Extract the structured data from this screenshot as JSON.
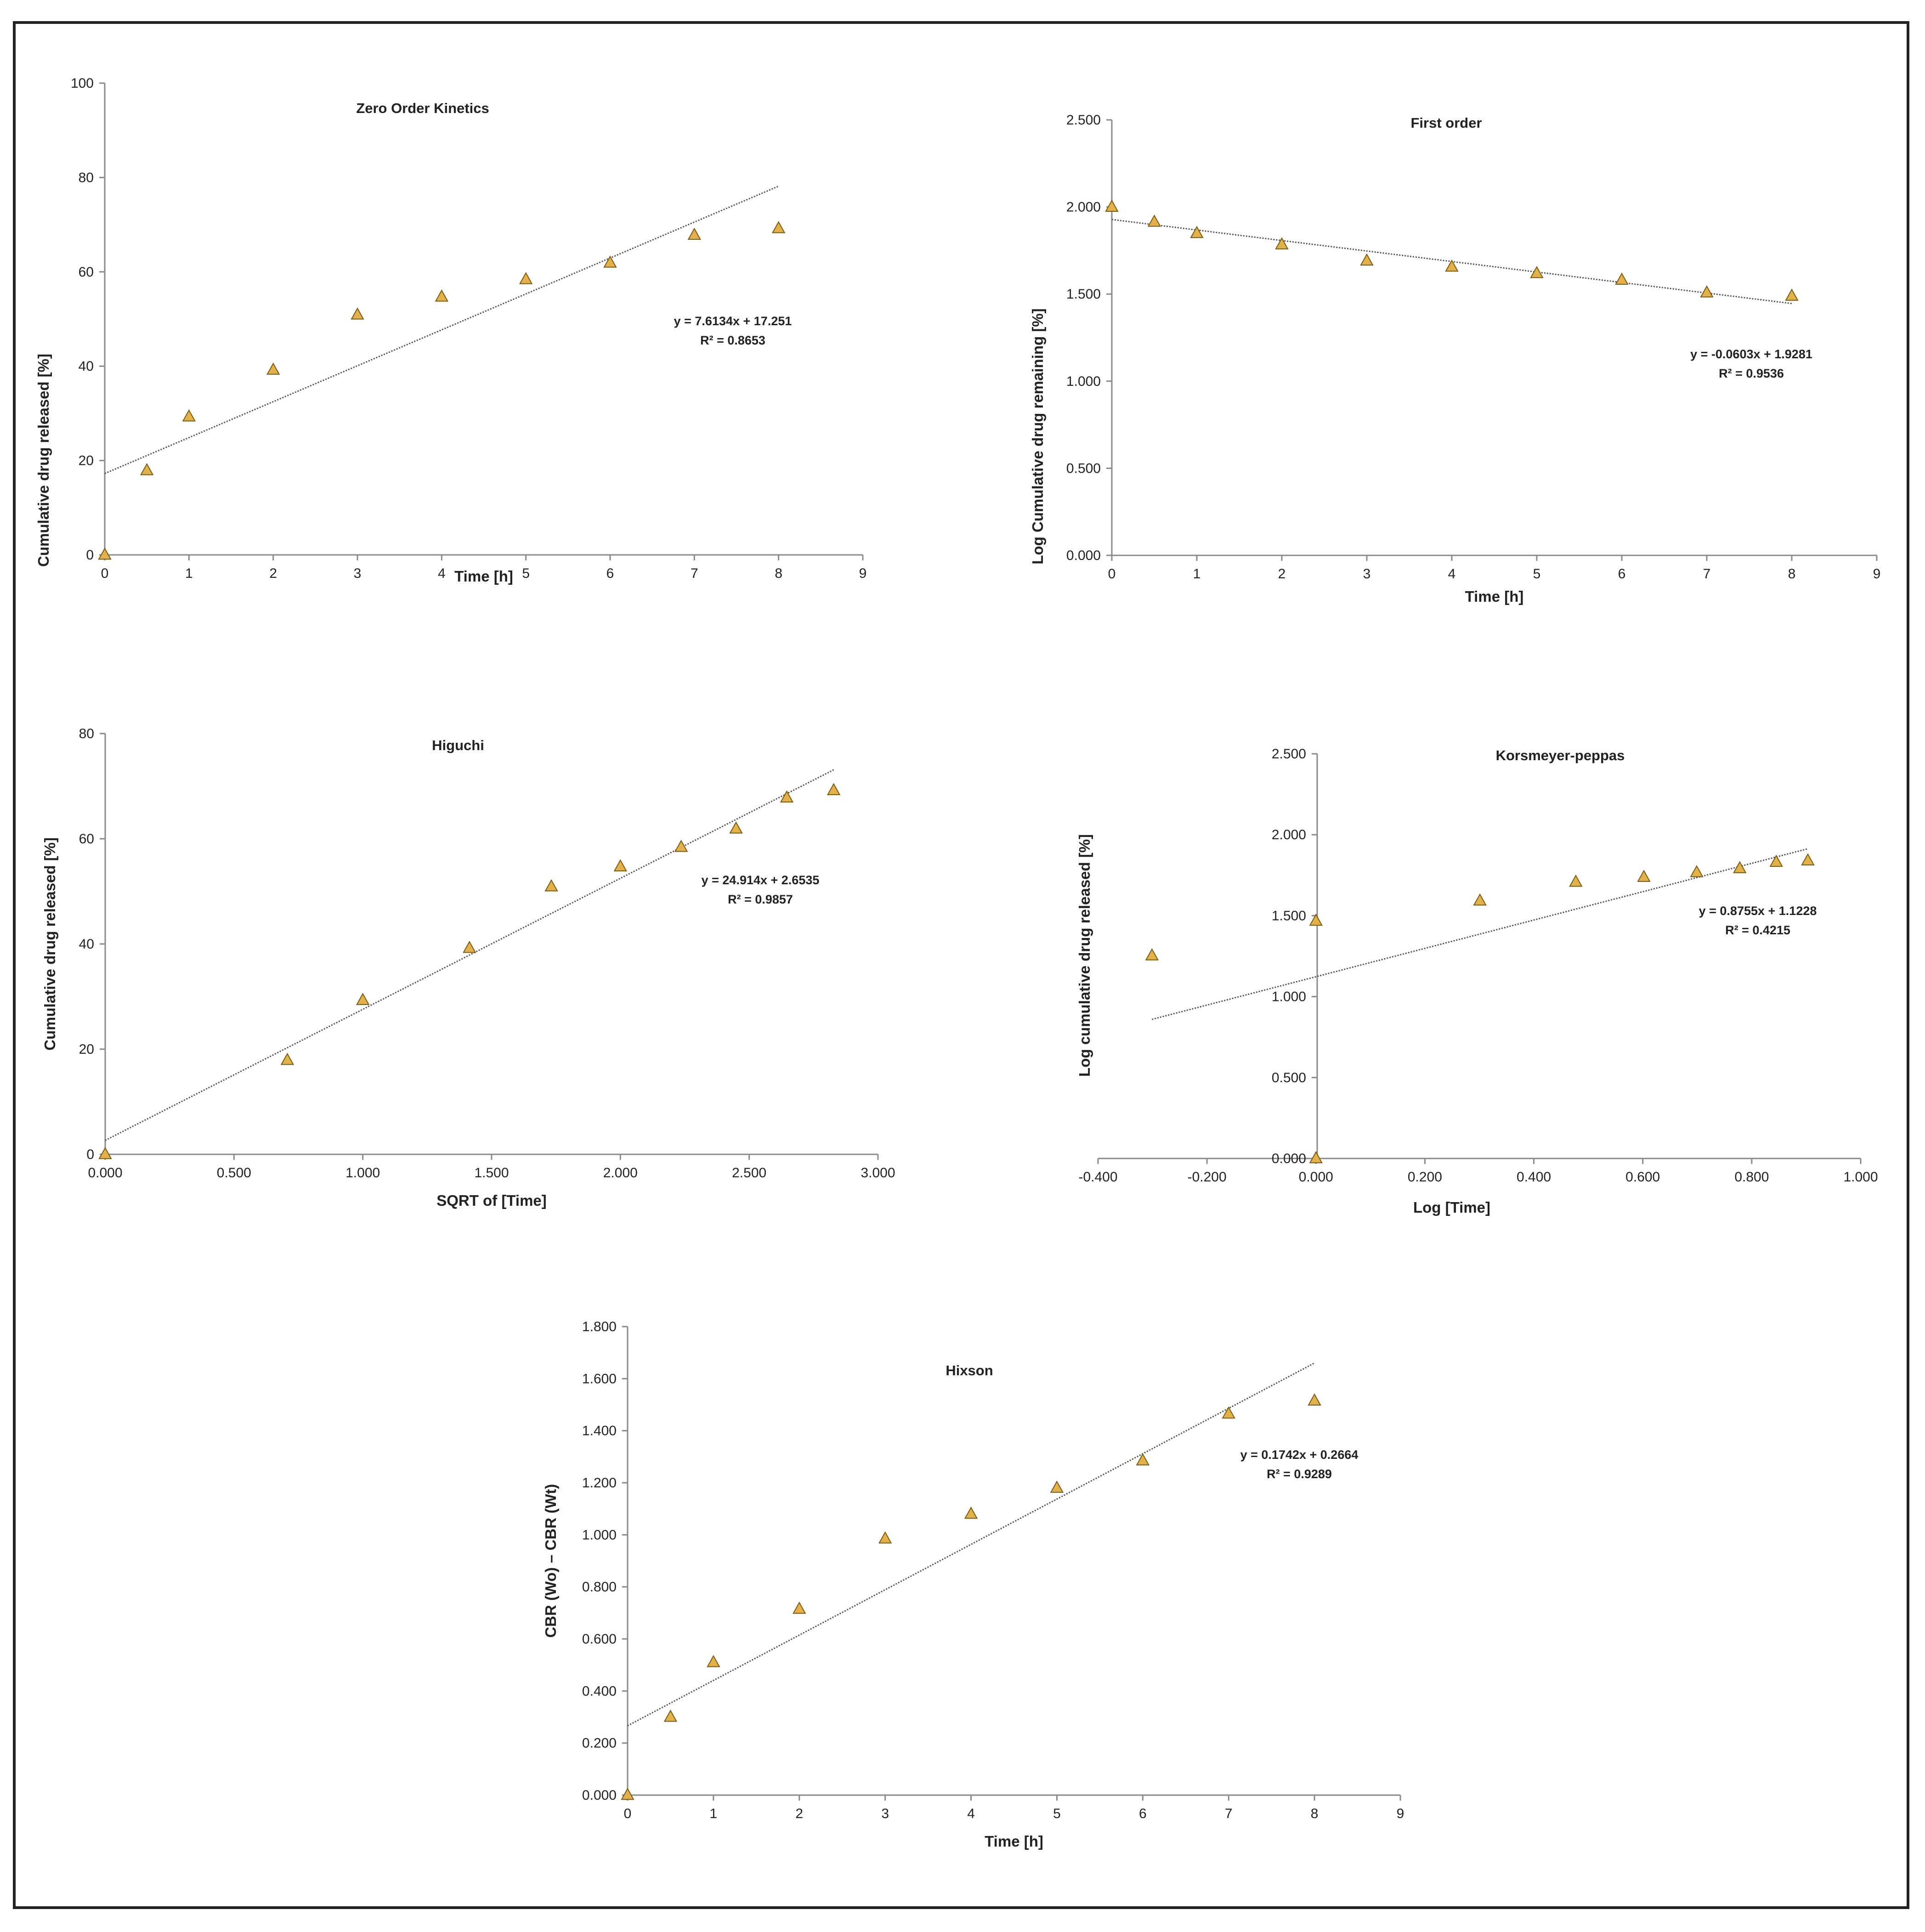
{
  "chart_data": [
    {
      "type": "scatter",
      "title": "Zero Order Kinetics",
      "xlabel": "Time [h]",
      "ylabel": "Cumulative drug released [%]",
      "xlim": [
        0,
        9
      ],
      "ylim": [
        0,
        100
      ],
      "xticks": [
        "0",
        "1",
        "2",
        "3",
        "4",
        "5",
        "6",
        "7",
        "8",
        "9"
      ],
      "yticks": [
        "0",
        "20",
        "40",
        "60",
        "80",
        "100"
      ],
      "x": [
        0,
        0.5,
        1,
        2,
        3,
        4,
        5,
        6,
        7,
        8
      ],
      "y": [
        0,
        17.9,
        29.3,
        39.2,
        50.9,
        54.7,
        58.4,
        61.9,
        67.8,
        69.2
      ],
      "trendline": {
        "slope": 7.6134,
        "intercept": 17.251,
        "x_range": [
          0,
          8
        ]
      },
      "equation": "y = 7.6134x + 17.251",
      "r2": "R² = 0.8653",
      "marker_color": "#e3b14a"
    },
    {
      "type": "scatter",
      "title": "First order",
      "xlabel": "Time [h]",
      "ylabel": "Log Cumulative drug remaining [%]",
      "xlim": [
        0,
        9
      ],
      "ylim": [
        0,
        2.5
      ],
      "xticks": [
        "0",
        "1",
        "2",
        "3",
        "4",
        "5",
        "6",
        "7",
        "8",
        "9"
      ],
      "yticks": [
        "0.000",
        "0.500",
        "1.000",
        "1.500",
        "2.000",
        "2.500"
      ],
      "x": [
        0,
        0.5,
        1,
        2,
        3,
        4,
        5,
        6,
        7,
        8
      ],
      "y": [
        2.0,
        1.914,
        1.849,
        1.784,
        1.691,
        1.656,
        1.619,
        1.581,
        1.508,
        1.489
      ],
      "trendline": {
        "slope": -0.0603,
        "intercept": 1.9281,
        "x_range": [
          0,
          8
        ]
      },
      "equation": "y = -0.0603x + 1.9281",
      "r2": "R² = 0.9536",
      "marker_color": "#e3b14a"
    },
    {
      "type": "scatter",
      "title": "Higuchi",
      "xlabel": "SQRT of [Time]",
      "ylabel": "Cumulative drug released [%]",
      "xlim": [
        0,
        3
      ],
      "ylim": [
        0,
        80
      ],
      "xticks": [
        "0.000",
        "0.500",
        "1.000",
        "1.500",
        "2.000",
        "2.500",
        "3.000"
      ],
      "yticks": [
        "0",
        "20",
        "40",
        "60",
        "80"
      ],
      "x": [
        0,
        0.707,
        1,
        1.414,
        1.732,
        2,
        2.236,
        2.449,
        2.646,
        2.828
      ],
      "y": [
        0,
        17.9,
        29.3,
        39.2,
        50.9,
        54.7,
        58.4,
        61.9,
        67.8,
        69.2
      ],
      "trendline": {
        "slope": 24.914,
        "intercept": 2.6535,
        "x_range": [
          0,
          2.828
        ]
      },
      "equation": "y = 24.914x + 2.6535",
      "r2": "R² = 0.9857",
      "marker_color": "#e3b14a"
    },
    {
      "type": "scatter",
      "title": "Korsmeyer-peppas",
      "xlabel": "Log [Time]",
      "ylabel": "Log cumulative drug released [%]",
      "xlim": [
        -0.4,
        1.0
      ],
      "ylim": [
        0,
        2.5
      ],
      "xticks": [
        "-0.400",
        "-0.200",
        "0.000",
        "0.200",
        "0.400",
        "0.600",
        "0.800",
        "1.000"
      ],
      "yticks": [
        "0.000",
        "0.500",
        "1.000",
        "1.500",
        "2.000",
        "2.500"
      ],
      "x": [
        -0.301,
        0,
        0,
        0.301,
        0.477,
        0.602,
        0.699,
        0.778,
        0.845,
        0.903
      ],
      "y": [
        1.253,
        1.467,
        0,
        1.592,
        1.708,
        1.738,
        1.767,
        1.792,
        1.831,
        1.84
      ],
      "trendline": {
        "slope": 0.8755,
        "intercept": 1.1228,
        "x_range": [
          -0.301,
          0.903
        ]
      },
      "equation": "y = 0.8755x + 1.1228",
      "r2": "R² = 0.4215",
      "marker_color": "#e3b14a"
    },
    {
      "type": "scatter",
      "title": "Hixson",
      "xlabel": "Time [h]",
      "ylabel": "CBR (Wo) – CBR (Wt)",
      "xlim": [
        0,
        9
      ],
      "ylim": [
        0,
        1.8
      ],
      "xticks": [
        "0",
        "1",
        "2",
        "3",
        "4",
        "5",
        "6",
        "7",
        "8",
        "9"
      ],
      "yticks": [
        "0.000",
        "0.200",
        "0.400",
        "0.600",
        "0.800",
        "1.000",
        "1.200",
        "1.400",
        "1.600",
        "1.800"
      ],
      "x": [
        0,
        0.5,
        1,
        2,
        3,
        4,
        5,
        6,
        7,
        8
      ],
      "y": [
        0,
        0.3,
        0.51,
        0.715,
        0.985,
        1.08,
        1.18,
        1.285,
        1.465,
        1.515
      ],
      "trendline": {
        "slope": 0.1742,
        "intercept": 0.2664,
        "x_range": [
          0,
          8
        ]
      },
      "equation": "y = 0.1742x + 0.2664",
      "r2": "R² = 0.9289",
      "marker_color": "#e3b14a"
    }
  ]
}
